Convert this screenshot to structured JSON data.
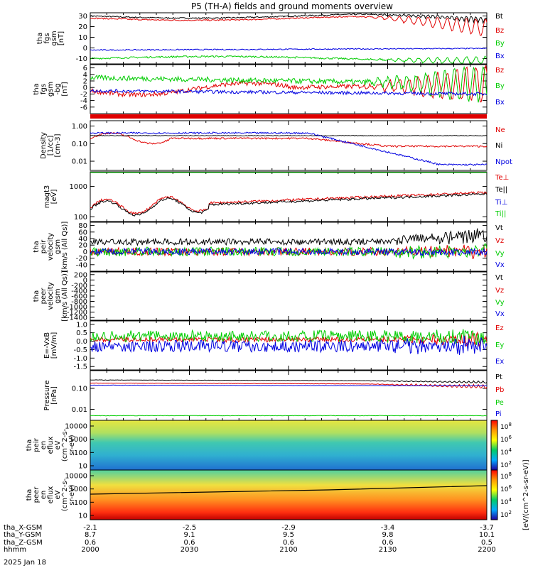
{
  "title": "P5 (TH-A) fields and ground moments overview",
  "date_label": "2025 Jan 18",
  "colorbar_unit_label": "[eV/(cm^2-s-sr-eV)]",
  "colors": {
    "black": "#000000",
    "red": "#e00000",
    "green": "#00cc00",
    "blue": "#0000e0",
    "frame": "#000000"
  },
  "chart_data": [
    {
      "type": "line",
      "panel": "fgm-gsm",
      "ylabel": [
        "tha",
        "fgs",
        "gsm",
        "[nT]"
      ],
      "ylim": [
        -15,
        33
      ],
      "yticks": [
        30,
        20,
        10,
        0,
        -10
      ],
      "yticklabels": [
        "30",
        "20",
        "10",
        "0",
        "-10"
      ],
      "log": false,
      "series": [
        {
          "name": "Bt",
          "color": "black"
        },
        {
          "name": "Bz",
          "color": "red"
        },
        {
          "name": "By",
          "color": "green"
        },
        {
          "name": "Bx",
          "color": "blue"
        }
      ]
    },
    {
      "type": "line",
      "panel": "fgm-dsl-detrended",
      "ylabel": [
        "tha",
        "fgs",
        "gsm",
        "-bg",
        "[nT]"
      ],
      "ylim": [
        -8,
        7
      ],
      "yticks": [
        6,
        4,
        2,
        0,
        -2,
        -4,
        -6
      ],
      "yticklabels": [
        "6",
        "4",
        "2",
        "0",
        "-2",
        "-4",
        "-6"
      ],
      "log": false,
      "series": [
        {
          "name": "Bz",
          "color": "red"
        },
        {
          "name": "By",
          "color": "green"
        },
        {
          "name": "Bx",
          "color": "blue"
        }
      ]
    },
    {
      "type": "line",
      "panel": "density",
      "ylabel": [
        "Density",
        "[1/cc]",
        "[cm-3]"
      ],
      "ylim": [
        0.003,
        2
      ],
      "yticks": [
        1,
        0.1,
        0.01
      ],
      "yticklabels": [
        "1.00",
        "0.10",
        "0.01"
      ],
      "log": true,
      "series": [
        {
          "name": "Ne",
          "color": "red"
        },
        {
          "name": "Ni",
          "color": "black"
        },
        {
          "name": "Npot",
          "color": "blue"
        }
      ]
    },
    {
      "type": "line",
      "panel": "temperature",
      "ylabel": [
        "magt3",
        "[eV]"
      ],
      "ylim": [
        70,
        3000
      ],
      "yticks": [
        1000,
        100
      ],
      "yticklabels": [
        "1000",
        "100"
      ],
      "log": true,
      "series": [
        {
          "name": "Te⊥",
          "color": "red"
        },
        {
          "name": "Te||",
          "color": "black"
        },
        {
          "name": "Ti⊥",
          "color": "blue"
        },
        {
          "name": "Ti||",
          "color": "green"
        }
      ]
    },
    {
      "type": "line",
      "panel": "ion-velocity",
      "ylabel": [
        "tha",
        "peir",
        "velocity",
        "gsm",
        "[km/s (All Qs)]"
      ],
      "ylim": [
        -60,
        90
      ],
      "yticks": [
        80,
        60,
        40,
        20,
        0,
        -20,
        -40
      ],
      "yticklabels": [
        "80",
        "60",
        "40",
        "20",
        "0",
        "-20",
        "-40"
      ],
      "log": false,
      "series": [
        {
          "name": "Vt",
          "color": "black"
        },
        {
          "name": "Vz",
          "color": "red"
        },
        {
          "name": "Vy",
          "color": "green"
        },
        {
          "name": "Vx",
          "color": "blue"
        }
      ]
    },
    {
      "type": "line",
      "panel": "electron-velocity",
      "ylabel": [
        "tha",
        "peer",
        "velocity",
        "gsm",
        "[km/s (All Qs)]"
      ],
      "ylim": [
        -1500,
        300
      ],
      "yticks": [
        200,
        0,
        -200,
        -400,
        -600,
        -800,
        -1000,
        -1200,
        -1400
      ],
      "yticklabels": [
        "200",
        "0",
        "-200",
        "-400",
        "-600",
        "-800",
        "-1000",
        "-1200",
        "-1400"
      ],
      "log": false,
      "series": [
        {
          "name": "Vt",
          "color": "black"
        },
        {
          "name": "Vz",
          "color": "red"
        },
        {
          "name": "Vy",
          "color": "green"
        },
        {
          "name": "Vx",
          "color": "blue"
        }
      ]
    },
    {
      "type": "line",
      "panel": "efield",
      "ylabel": [
        "E=-VxB",
        "[mV/m]"
      ],
      "ylim": [
        -1.7,
        1.2
      ],
      "yticks": [
        1.0,
        0.5,
        0.0,
        -0.5,
        -1.0,
        -1.5
      ],
      "yticklabels": [
        "1.0",
        "0.5",
        "0.0",
        "-0.5",
        "-1.0",
        "-1.5"
      ],
      "log": false,
      "series": [
        {
          "name": "Ez",
          "color": "red"
        },
        {
          "name": "Ey",
          "color": "green"
        },
        {
          "name": "Ex",
          "color": "blue"
        }
      ]
    },
    {
      "type": "line",
      "panel": "pressure",
      "ylabel": [
        "Pressure",
        "[nPa]"
      ],
      "ylim": [
        0.003,
        0.7
      ],
      "yticks": [
        0.1,
        0.01
      ],
      "yticklabels": [
        "0.10",
        "0.01"
      ],
      "log": true,
      "series": [
        {
          "name": "Pt",
          "color": "black"
        },
        {
          "name": "Pb",
          "color": "red"
        },
        {
          "name": "Pe",
          "color": "green"
        },
        {
          "name": "Pi",
          "color": "blue"
        }
      ]
    },
    {
      "type": "heatmap",
      "panel": "ion-spectrogram",
      "ylabel": [
        "tha",
        "peir",
        "en",
        "eflux",
        "eV",
        "(cm^2-s-",
        "sr-eV)"
      ],
      "yticks": [
        10000,
        1000,
        100,
        10
      ],
      "yticklabels": [
        "10000",
        "1000",
        "100",
        "10"
      ],
      "log": true
    },
    {
      "type": "heatmap",
      "panel": "electron-spectrogram",
      "ylabel": [
        "tha",
        "peer",
        "en",
        "eflux",
        "eV",
        "(cm^2-s-",
        "sr-eV)"
      ],
      "yticks": [
        10000,
        1000,
        100,
        10
      ],
      "yticklabels": [
        "10000",
        "1000",
        "100",
        "10"
      ],
      "log": true
    }
  ],
  "colorbars": [
    {
      "ticklabels": [
        "10^8",
        "10^6",
        "10^4",
        "10^2"
      ]
    },
    {
      "ticklabels": [
        "10^8",
        "10^6",
        "10^4",
        "10^2"
      ]
    }
  ],
  "x_axis": {
    "row_labels": [
      "tha_X-GSM",
      "tha_Y-GSM",
      "tha_Z-GSM",
      "hhmm"
    ],
    "columns": [
      {
        "x": "-2.1",
        "y": "8.7",
        "z": "0.6",
        "hhmm": "2000"
      },
      {
        "x": "-2.5",
        "y": "9.1",
        "z": "0.6",
        "hhmm": "2030"
      },
      {
        "x": "-2.9",
        "y": "9.5",
        "z": "0.6",
        "hhmm": "2100"
      },
      {
        "x": "-3.4",
        "y": "9.8",
        "z": "0.6",
        "hhmm": "2130"
      },
      {
        "x": "-3.7",
        "y": "10.1",
        "z": "0.5",
        "hhmm": "2200"
      }
    ]
  }
}
